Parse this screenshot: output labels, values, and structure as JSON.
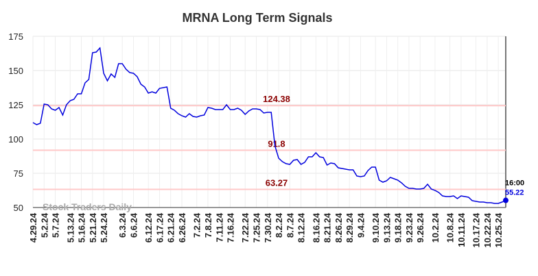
{
  "chart_data": {
    "type": "line",
    "title": "MRNA Long Term Signals",
    "categories": [
      "4.29.24",
      null,
      null,
      "5.2.24",
      null,
      null,
      "5.7.24",
      null,
      null,
      null,
      "5.13.24",
      null,
      null,
      "5.16.24",
      null,
      null,
      "5.21.24",
      null,
      null,
      "5.24.24",
      null,
      null,
      null,
      null,
      "6.3.24",
      null,
      null,
      "6.6.24",
      null,
      null,
      null,
      "6.12.24",
      null,
      null,
      "6.17.24",
      null,
      null,
      "6.21.24",
      null,
      null,
      "6.26.24",
      null,
      null,
      null,
      "7.2.24",
      null,
      null,
      "7.8.24",
      null,
      null,
      "7.11.24",
      null,
      null,
      "7.16.24",
      null,
      null,
      null,
      "7.22.24",
      null,
      null,
      "7.25.24",
      null,
      null,
      "7.30.24",
      null,
      null,
      "8.2.24",
      null,
      null,
      "8.7.24",
      null,
      null,
      "8.12.24",
      null,
      null,
      null,
      "8.16.24",
      null,
      null,
      "8.21.24",
      null,
      null,
      "8.26.24",
      null,
      null,
      "8.29.24",
      null,
      null,
      "9.4.24",
      null,
      null,
      null,
      "9.10.24",
      null,
      null,
      "9.13.24",
      null,
      null,
      "9.18.24",
      null,
      null,
      "9.23.24",
      null,
      null,
      "9.26.24",
      null,
      null,
      null,
      "10.2.24",
      null,
      null,
      null,
      "10.8.24",
      null,
      null,
      "10.11.24",
      null,
      null,
      null,
      "10.17.24",
      null,
      null,
      "10.22.24",
      null,
      null,
      "10.25.24",
      null,
      null
    ],
    "series": [
      {
        "color": "#0000dd",
        "values": [
          112,
          110.5,
          111.5,
          125.5,
          125,
          122,
          121,
          123,
          117.5,
          125,
          128,
          129,
          133,
          133,
          141,
          143.5,
          163,
          163.5,
          166.5,
          148,
          142.5,
          147.5,
          145,
          155,
          155,
          151,
          148.5,
          148,
          145.5,
          140,
          138,
          133.5,
          134.5,
          133.5,
          137,
          137.5,
          138,
          122.5,
          121,
          118.5,
          117,
          116,
          118.5,
          116.5,
          116,
          117,
          117.5,
          123,
          122.5,
          121.5,
          121.5,
          121.5,
          125,
          121.5,
          121.5,
          122.5,
          121,
          118,
          120.5,
          122,
          122,
          121.5,
          119,
          119.5,
          119.5,
          95,
          86,
          83.5,
          82,
          81.5,
          84.5,
          85,
          81.5,
          83,
          87,
          87,
          90,
          87,
          86.5,
          81,
          82.5,
          82,
          79,
          78.5,
          78,
          77.5,
          77.5,
          73,
          72.5,
          73,
          77,
          79.5,
          79.5,
          70,
          68.5,
          69.5,
          72,
          71,
          70,
          68,
          65.5,
          64,
          64,
          63.5,
          63.5,
          64,
          67,
          63.5,
          62.5,
          61,
          58.5,
          58,
          58,
          58.5,
          56.5,
          58.5,
          58,
          57.5,
          55,
          54.5,
          54,
          54,
          53.5,
          53.5,
          53,
          53,
          54,
          55.22
        ]
      }
    ],
    "ylim": [
      50,
      175
    ],
    "yticks": [
      50,
      75,
      100,
      125,
      150,
      175
    ],
    "grid": true,
    "hlines": [
      {
        "value": 124.38,
        "color": "#ffc8c8",
        "label_color": "#8b0000"
      },
      {
        "value": 91.8,
        "color": "#ffc8c8",
        "label_color": "#8b0000"
      },
      {
        "value": 63.27,
        "color": "#ffc8c8",
        "label_color": "#8b0000"
      }
    ],
    "last_time": "16:00",
    "watermark": "Stock Traders Daily"
  }
}
